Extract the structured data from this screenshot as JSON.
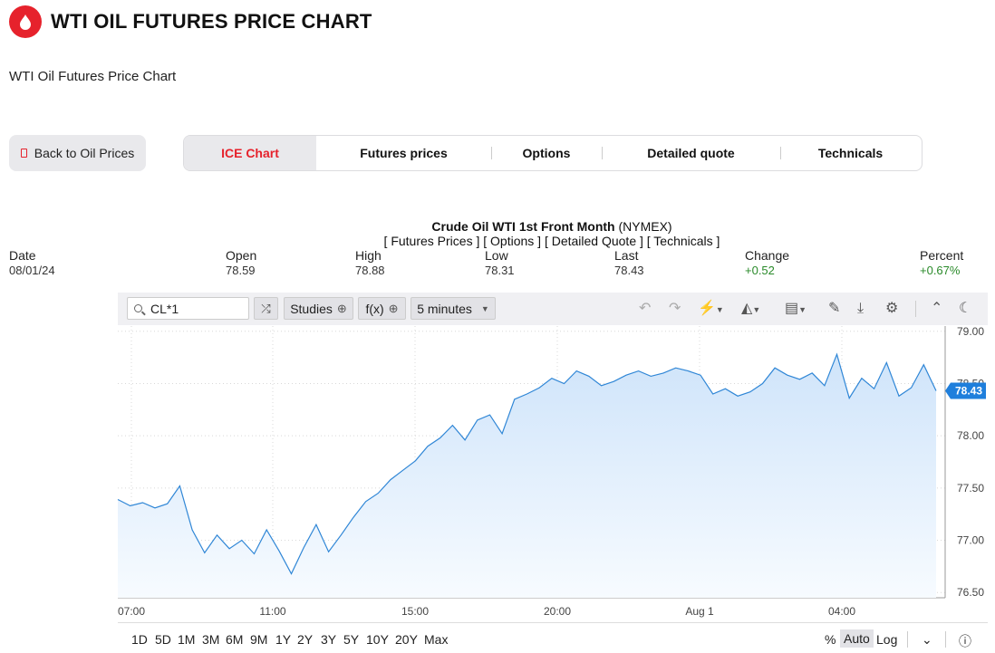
{
  "header": {
    "title": "WTI OIL FUTURES PRICE CHART",
    "subtitle": "WTI Oil Futures Price Chart"
  },
  "nav": {
    "back_label": "Back to Oil Prices",
    "tabs": [
      {
        "label": "ICE Chart",
        "active": true
      },
      {
        "label": "Futures prices",
        "active": false
      },
      {
        "label": "Options",
        "active": false
      },
      {
        "label": "Detailed quote",
        "active": false
      },
      {
        "label": "Technicals",
        "active": false
      }
    ]
  },
  "quote": {
    "name": "Crude Oil WTI 1st Front Month",
    "exchange": "(NYMEX)",
    "links": "[ Futures Prices ] [ Options ] [ Detailed Quote ] [ Technicals ]",
    "stats": [
      {
        "label": "Date",
        "value": "08/01/24"
      },
      {
        "label": "Open",
        "value": "78.59"
      },
      {
        "label": "High",
        "value": "78.88"
      },
      {
        "label": "Low",
        "value": "78.31"
      },
      {
        "label": "Last",
        "value": "78.43"
      },
      {
        "label": "Change",
        "value": "+0.52"
      },
      {
        "label": "Percent",
        "value": "+0.67%"
      }
    ]
  },
  "toolbar": {
    "symbol": "CL*1",
    "studies_label": "Studies",
    "fx_label": "f(x)",
    "interval_label": "5 minutes"
  },
  "ranges": [
    "1D",
    "5D",
    "1M",
    "3M",
    "6M",
    "9M",
    "1Y",
    "2Y",
    "3Y",
    "5Y",
    "10Y",
    "20Y",
    "Max"
  ],
  "scale_options": {
    "percent": "%",
    "auto": "Auto",
    "log": "Log",
    "selected": "Auto"
  },
  "colors": {
    "brand": "#e6222c",
    "line": "#2f86d6",
    "area": "#cfe4fa",
    "positive": "#2a8a2a",
    "last_price": "#1f7fdc"
  },
  "chart_data": {
    "type": "area",
    "title": "",
    "xlabel": "",
    "ylabel": "",
    "ylim": [
      76.45,
      79.05
    ],
    "y_ticks": [
      "79.00",
      "78.50",
      "78.00",
      "77.50",
      "77.00",
      "76.50"
    ],
    "x_ticks": [
      "07:00",
      "11:00",
      "15:00",
      "20:00",
      "Aug 1",
      "04:00"
    ],
    "last_value": "78.43",
    "grid": true,
    "series": [
      {
        "x": [
          "06:00",
          "06:15",
          "06:30",
          "06:45",
          "07:00",
          "07:15",
          "07:30",
          "07:45",
          "08:00",
          "08:15",
          "08:30",
          "08:45",
          "09:00",
          "09:15",
          "09:30",
          "09:45",
          "10:00",
          "10:15",
          "10:30",
          "10:45",
          "11:00",
          "11:15",
          "11:30",
          "11:45",
          "12:00",
          "12:15",
          "12:30",
          "12:45",
          "13:00",
          "13:15",
          "13:30",
          "13:45",
          "14:00",
          "14:15",
          "14:30",
          "14:45",
          "15:00",
          "15:30",
          "16:00",
          "16:30",
          "17:00",
          "17:30",
          "18:00",
          "18:30",
          "19:00",
          "19:30",
          "20:00",
          "20:30",
          "21:00",
          "21:30",
          "22:00",
          "22:30",
          "23:00",
          "23:30",
          "00:00",
          "00:30",
          "01:00",
          "01:30",
          "02:00",
          "02:30",
          "03:00",
          "03:30",
          "04:00",
          "04:30",
          "05:00",
          "05:30",
          "06:00"
        ],
        "values": [
          77.39,
          77.33,
          77.36,
          77.31,
          77.35,
          77.52,
          77.1,
          76.88,
          77.05,
          76.92,
          77.0,
          76.87,
          77.1,
          76.9,
          76.68,
          76.93,
          77.15,
          76.89,
          77.05,
          77.22,
          77.37,
          77.45,
          77.58,
          77.67,
          77.76,
          77.9,
          77.98,
          78.1,
          77.96,
          78.15,
          78.2,
          78.02,
          78.35,
          78.4,
          78.46,
          78.55,
          78.5,
          78.62,
          78.57,
          78.48,
          78.52,
          78.58,
          78.62,
          78.57,
          78.6,
          78.65,
          78.62,
          78.58,
          78.4,
          78.45,
          78.38,
          78.42,
          78.5,
          78.65,
          78.58,
          78.54,
          78.6,
          78.48,
          78.78,
          78.36,
          78.55,
          78.45,
          78.7,
          78.38,
          78.46,
          78.68,
          78.43
        ]
      }
    ]
  }
}
